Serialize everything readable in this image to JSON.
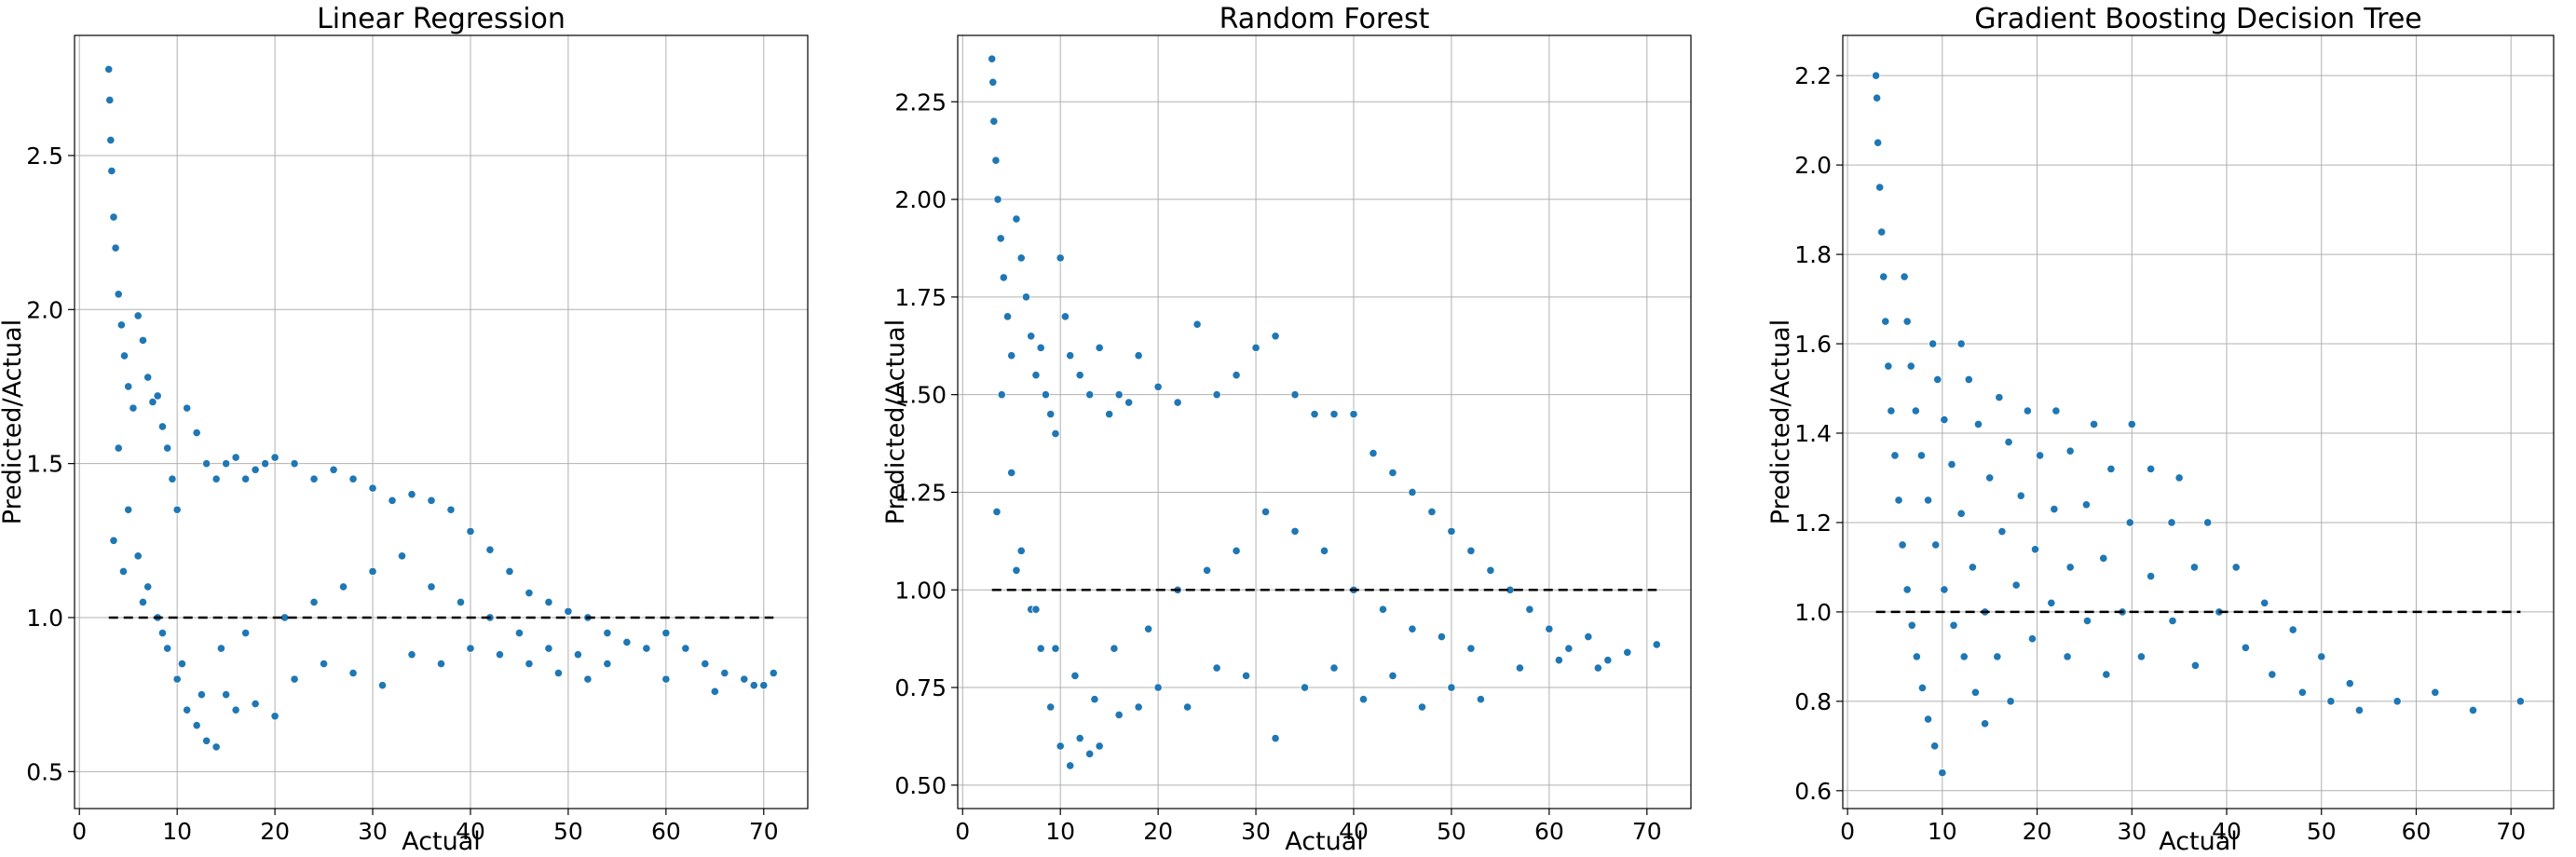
{
  "colors": {
    "point": "#1f77b4",
    "reference_line": "#000000",
    "grid": "#b0b0b0"
  },
  "chart_data": [
    {
      "type": "scatter",
      "title": "Linear Regression",
      "xlabel": "Actual",
      "ylabel": "Predicted/Actual",
      "xlim": [
        -0.5,
        74.5
      ],
      "ylim": [
        0.38,
        2.89
      ],
      "xticks": [
        0,
        10,
        20,
        30,
        40,
        50,
        60,
        70
      ],
      "yticks": [
        0.5,
        1.0,
        1.5,
        2.0,
        2.5
      ],
      "ytick_labels": [
        "0.5",
        "1.0",
        "1.5",
        "2.0",
        "2.5"
      ],
      "grid": true,
      "reference_line": {
        "y": 1.0,
        "x_from": 3,
        "x_to": 71
      },
      "series": [
        {
          "x": [
            3.0,
            3.1,
            3.2,
            3.3,
            3.5,
            3.7,
            4.0,
            4.3,
            4.6,
            5.0,
            5.5,
            6.0,
            6.5,
            7.0,
            7.5,
            8.0,
            8.5,
            9.0,
            9.5,
            10.0,
            11.0,
            12.0,
            13.0,
            14.0,
            15.0,
            16.0,
            17.0,
            18.0,
            19.0,
            20.0,
            22.0,
            24.0,
            26.0,
            28.0,
            30.0,
            32.0,
            34.0,
            36.0,
            38.0,
            40.0,
            42.0,
            44.0,
            46.0,
            48.0,
            50.0,
            52.0,
            54.0,
            56.0,
            58.0,
            60.0,
            62.0,
            64.0,
            66.0,
            68.0,
            70.0,
            71.0,
            4.0,
            5.0,
            6.0,
            7.0,
            8.0,
            9.0,
            10.0,
            11.0,
            12.0,
            13.0,
            14.0,
            15.0,
            16.0,
            18.0,
            20.0,
            22.0,
            25.0,
            28.0,
            31.0,
            34.0,
            37.0,
            40.0,
            43.0,
            46.0,
            49.0,
            52.0,
            3.5,
            4.5,
            6.5,
            8.5,
            10.5,
            12.5,
            14.5,
            17.0,
            21.0,
            24.0,
            27.0,
            30.0,
            33.0,
            36.0,
            39.0,
            42.0,
            45.0,
            48.0,
            51.0,
            54.0,
            60.0,
            65.0,
            69.0
          ],
          "y": [
            2.78,
            2.68,
            2.55,
            2.45,
            2.3,
            2.2,
            2.05,
            1.95,
            1.85,
            1.75,
            1.68,
            1.98,
            1.9,
            1.78,
            1.7,
            1.72,
            1.62,
            1.55,
            1.45,
            1.35,
            1.68,
            1.6,
            1.5,
            1.45,
            1.5,
            1.52,
            1.45,
            1.48,
            1.5,
            1.52,
            1.5,
            1.45,
            1.48,
            1.45,
            1.42,
            1.38,
            1.4,
            1.38,
            1.35,
            1.28,
            1.22,
            1.15,
            1.08,
            1.05,
            1.02,
            1.0,
            0.95,
            0.92,
            0.9,
            0.95,
            0.9,
            0.85,
            0.82,
            0.8,
            0.78,
            0.82,
            1.55,
            1.35,
            1.2,
            1.1,
            1.0,
            0.9,
            0.8,
            0.7,
            0.65,
            0.6,
            0.58,
            0.75,
            0.7,
            0.72,
            0.68,
            0.8,
            0.85,
            0.82,
            0.78,
            0.88,
            0.85,
            0.9,
            0.88,
            0.85,
            0.82,
            0.8,
            1.25,
            1.15,
            1.05,
            0.95,
            0.85,
            0.75,
            0.9,
            0.95,
            1.0,
            1.05,
            1.1,
            1.15,
            1.2,
            1.1,
            1.05,
            1.0,
            0.95,
            0.9,
            0.88,
            0.85,
            0.8,
            0.76,
            0.78
          ]
        }
      ]
    },
    {
      "type": "scatter",
      "title": "Random Forest",
      "xlabel": "Actual",
      "ylabel": "Predicted/Actual",
      "xlim": [
        -0.5,
        74.5
      ],
      "ylim": [
        0.44,
        2.42
      ],
      "xticks": [
        0,
        10,
        20,
        30,
        40,
        50,
        60,
        70
      ],
      "yticks": [
        0.5,
        0.75,
        1.0,
        1.25,
        1.5,
        1.75,
        2.0,
        2.25
      ],
      "ytick_labels": [
        "0.50",
        "0.75",
        "1.00",
        "1.25",
        "1.50",
        "1.75",
        "2.00",
        "2.25"
      ],
      "grid": true,
      "reference_line": {
        "y": 1.0,
        "x_from": 3,
        "x_to": 71
      },
      "series": [
        {
          "x": [
            3.0,
            3.1,
            3.2,
            3.4,
            3.6,
            3.9,
            4.2,
            4.6,
            5.0,
            5.5,
            6.0,
            6.5,
            7.0,
            7.5,
            8.0,
            8.5,
            9.0,
            9.5,
            10.0,
            10.5,
            11.0,
            12.0,
            13.0,
            14.0,
            15.0,
            16.0,
            17.0,
            18.0,
            20.0,
            22.0,
            24.0,
            26.0,
            28.0,
            30.0,
            32.0,
            34.0,
            36.0,
            38.0,
            40.0,
            42.0,
            44.0,
            46.0,
            48.0,
            50.0,
            52.0,
            54.0,
            56.0,
            58.0,
            60.0,
            62.0,
            64.0,
            66.0,
            68.0,
            71.0,
            4.0,
            5.0,
            6.0,
            7.0,
            8.0,
            9.0,
            10.0,
            11.0,
            12.0,
            13.0,
            14.0,
            16.0,
            18.0,
            20.0,
            23.0,
            26.0,
            29.0,
            32.0,
            35.0,
            38.0,
            41.0,
            44.0,
            47.0,
            50.0,
            53.0,
            3.5,
            5.5,
            7.5,
            9.5,
            11.5,
            13.5,
            15.5,
            19.0,
            22.0,
            25.0,
            28.0,
            31.0,
            34.0,
            37.0,
            40.0,
            43.0,
            46.0,
            49.0,
            52.0,
            57.0,
            61.0,
            65.0
          ],
          "y": [
            2.36,
            2.3,
            2.2,
            2.1,
            2.0,
            1.9,
            1.8,
            1.7,
            1.6,
            1.95,
            1.85,
            1.75,
            1.65,
            1.55,
            1.62,
            1.5,
            1.45,
            1.4,
            1.85,
            1.7,
            1.6,
            1.55,
            1.5,
            1.62,
            1.45,
            1.5,
            1.48,
            1.6,
            1.52,
            1.48,
            1.68,
            1.5,
            1.55,
            1.62,
            1.65,
            1.5,
            1.45,
            1.45,
            1.45,
            1.35,
            1.3,
            1.25,
            1.2,
            1.15,
            1.1,
            1.05,
            1.0,
            0.95,
            0.9,
            0.85,
            0.88,
            0.82,
            0.84,
            0.86,
            1.5,
            1.3,
            1.1,
            0.95,
            0.85,
            0.7,
            0.6,
            0.55,
            0.62,
            0.58,
            0.6,
            0.68,
            0.7,
            0.75,
            0.7,
            0.8,
            0.78,
            0.62,
            0.75,
            0.8,
            0.72,
            0.78,
            0.7,
            0.75,
            0.72,
            1.2,
            1.05,
            0.95,
            0.85,
            0.78,
            0.72,
            0.85,
            0.9,
            1.0,
            1.05,
            1.1,
            1.2,
            1.15,
            1.1,
            1.0,
            0.95,
            0.9,
            0.88,
            0.85,
            0.8,
            0.82,
            0.8
          ]
        }
      ]
    },
    {
      "type": "scatter",
      "title": "Gradient Boosting Decision Tree",
      "xlabel": "Actual",
      "ylabel": "Predicted/Actual",
      "xlim": [
        -0.5,
        74.5
      ],
      "ylim": [
        0.56,
        2.29
      ],
      "xticks": [
        0,
        10,
        20,
        30,
        40,
        50,
        60,
        70
      ],
      "yticks": [
        0.6,
        0.8,
        1.0,
        1.2,
        1.4,
        1.6,
        1.8,
        2.0,
        2.2
      ],
      "ytick_labels": [
        "0.6",
        "0.8",
        "1.0",
        "1.2",
        "1.4",
        "1.6",
        "1.8",
        "2.0",
        "2.2"
      ],
      "grid": true,
      "reference_line": {
        "y": 1.0,
        "x_from": 3,
        "x_to": 71
      },
      "series": [
        {
          "x": [
            3.0,
            3.1,
            3.2,
            3.4,
            3.6,
            3.8,
            4.0,
            4.3,
            4.6,
            5.0,
            5.4,
            5.8,
            6.3,
            6.8,
            7.3,
            7.9,
            8.5,
            9.2,
            10.0,
            6.0,
            6.3,
            6.7,
            7.2,
            7.8,
            8.5,
            9.3,
            10.2,
            11.2,
            12.3,
            13.5,
            14.5,
            9.0,
            9.5,
            10.2,
            11.0,
            12.0,
            13.2,
            14.5,
            15.8,
            17.2,
            12.0,
            12.8,
            13.8,
            15.0,
            16.3,
            17.8,
            19.5,
            16.0,
            17.0,
            18.3,
            19.8,
            21.5,
            23.2,
            19.0,
            20.3,
            21.8,
            23.5,
            25.3,
            27.3,
            22.0,
            23.5,
            25.2,
            27.0,
            29.0,
            31.0,
            26.0,
            27.8,
            29.8,
            32.0,
            34.3,
            36.7,
            30.0,
            32.0,
            34.2,
            36.6,
            39.2,
            42.0,
            44.8,
            48.0,
            51.0,
            54.0,
            58.0,
            62.0,
            66.0,
            71.0,
            35.0,
            38.0,
            41.0,
            44.0,
            47.0,
            50.0,
            53.0
          ],
          "y": [
            2.2,
            2.15,
            2.05,
            1.95,
            1.85,
            1.75,
            1.65,
            1.55,
            1.45,
            1.35,
            1.25,
            1.15,
            1.05,
            0.97,
            0.9,
            0.83,
            0.76,
            0.7,
            0.64,
            1.75,
            1.65,
            1.55,
            1.45,
            1.35,
            1.25,
            1.15,
            1.05,
            0.97,
            0.9,
            0.82,
            0.75,
            1.6,
            1.52,
            1.43,
            1.33,
            1.22,
            1.1,
            1.0,
            0.9,
            0.8,
            1.6,
            1.52,
            1.42,
            1.3,
            1.18,
            1.06,
            0.94,
            1.48,
            1.38,
            1.26,
            1.14,
            1.02,
            0.9,
            1.45,
            1.35,
            1.23,
            1.1,
            0.98,
            0.86,
            1.45,
            1.36,
            1.24,
            1.12,
            1.0,
            0.9,
            1.42,
            1.32,
            1.2,
            1.08,
            0.98,
            0.88,
            1.42,
            1.32,
            1.2,
            1.1,
            1.0,
            0.92,
            0.86,
            0.82,
            0.8,
            0.78,
            0.8,
            0.82,
            0.78,
            0.8,
            1.3,
            1.2,
            1.1,
            1.02,
            0.96,
            0.9,
            0.84
          ]
        }
      ]
    }
  ]
}
